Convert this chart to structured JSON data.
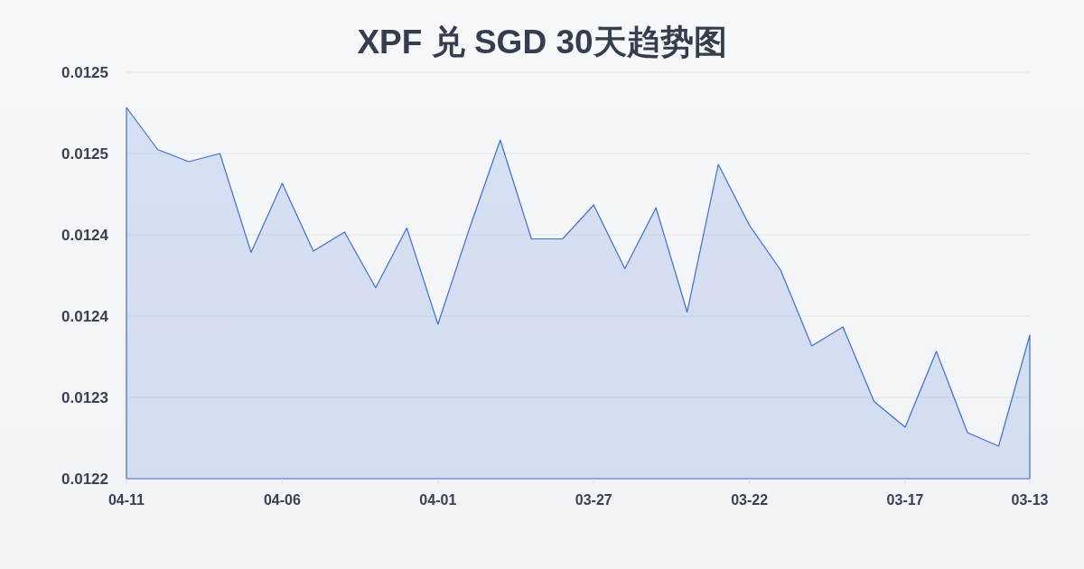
{
  "chart_data": {
    "type": "area",
    "title": "XPF 兑 SGD 30天趋势图",
    "categories": [
      "04-11",
      null,
      null,
      null,
      null,
      "04-06",
      null,
      null,
      null,
      null,
      "04-01",
      null,
      null,
      null,
      null,
      "03-27",
      null,
      null,
      null,
      null,
      "03-22",
      null,
      null,
      null,
      null,
      "03-17",
      null,
      null,
      null,
      "03-13"
    ],
    "values": [
      0.012514,
      0.012483,
      0.012474,
      0.01248,
      0.012407,
      0.012458,
      0.012408,
      0.012422,
      0.012381,
      0.012425,
      0.012354,
      0.012424,
      0.01249,
      0.012417,
      0.012417,
      0.012442,
      0.012395,
      0.01244,
      0.012363,
      0.012472,
      0.012427,
      0.012394,
      0.012338,
      0.012352,
      0.012297,
      0.012278,
      0.012334,
      0.012274,
      0.012264,
      0.012346
    ],
    "color": "#3d6fd1",
    "ylim": [
      0.01224,
      0.01254
    ],
    "yticks": [
      {
        "value": 0.01224,
        "label": "0.0122"
      },
      {
        "value": 0.0123,
        "label": "0.0123"
      },
      {
        "value": 0.01236,
        "label": "0.0124"
      },
      {
        "value": 0.01242,
        "label": "0.0124"
      },
      {
        "value": 0.01248,
        "label": "0.0125"
      },
      {
        "value": 0.01254,
        "label": "0.0125"
      }
    ],
    "grid": "y"
  }
}
